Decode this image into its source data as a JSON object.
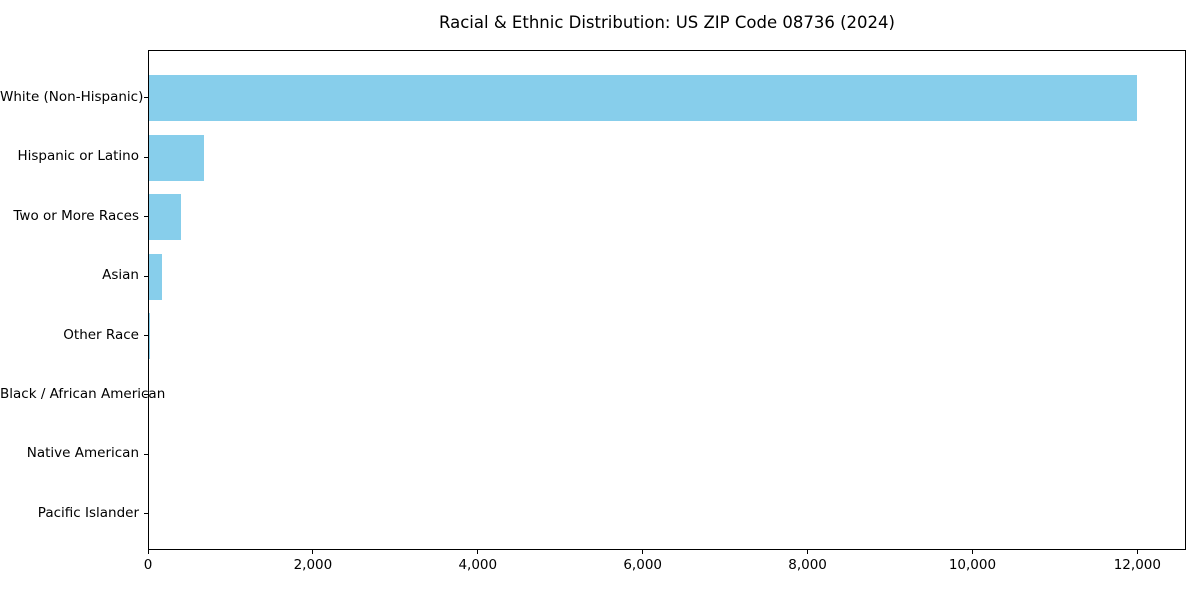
{
  "page": {
    "title": "Racial & Ethnic Distribution: US ZIP Code 08736 (2024)"
  },
  "chart_data": {
    "type": "bar",
    "orientation": "horizontal",
    "title": "Racial & Ethnic Distribution: US ZIP Code 08736 (2024)",
    "categories": [
      "White (Non-Hispanic)",
      "Hispanic or Latino",
      "Two or More Races",
      "Asian",
      "Other Race",
      "Black / African American",
      "Native American",
      "Pacific Islander"
    ],
    "values": [
      11980,
      670,
      390,
      155,
      15,
      0,
      0,
      0
    ],
    "xlabel": "",
    "ylabel": "",
    "xlim": [
      0,
      12590
    ],
    "x_ticks": [
      0,
      2000,
      4000,
      6000,
      8000,
      10000,
      12000
    ],
    "x_tick_labels": [
      "0",
      "2,000",
      "4,000",
      "6,000",
      "8,000",
      "10,000",
      "12,000"
    ],
    "bar_color": "#87CEEB",
    "background_color": "#ffffff",
    "frame_color": "#000000",
    "grid": false,
    "legend": null
  }
}
